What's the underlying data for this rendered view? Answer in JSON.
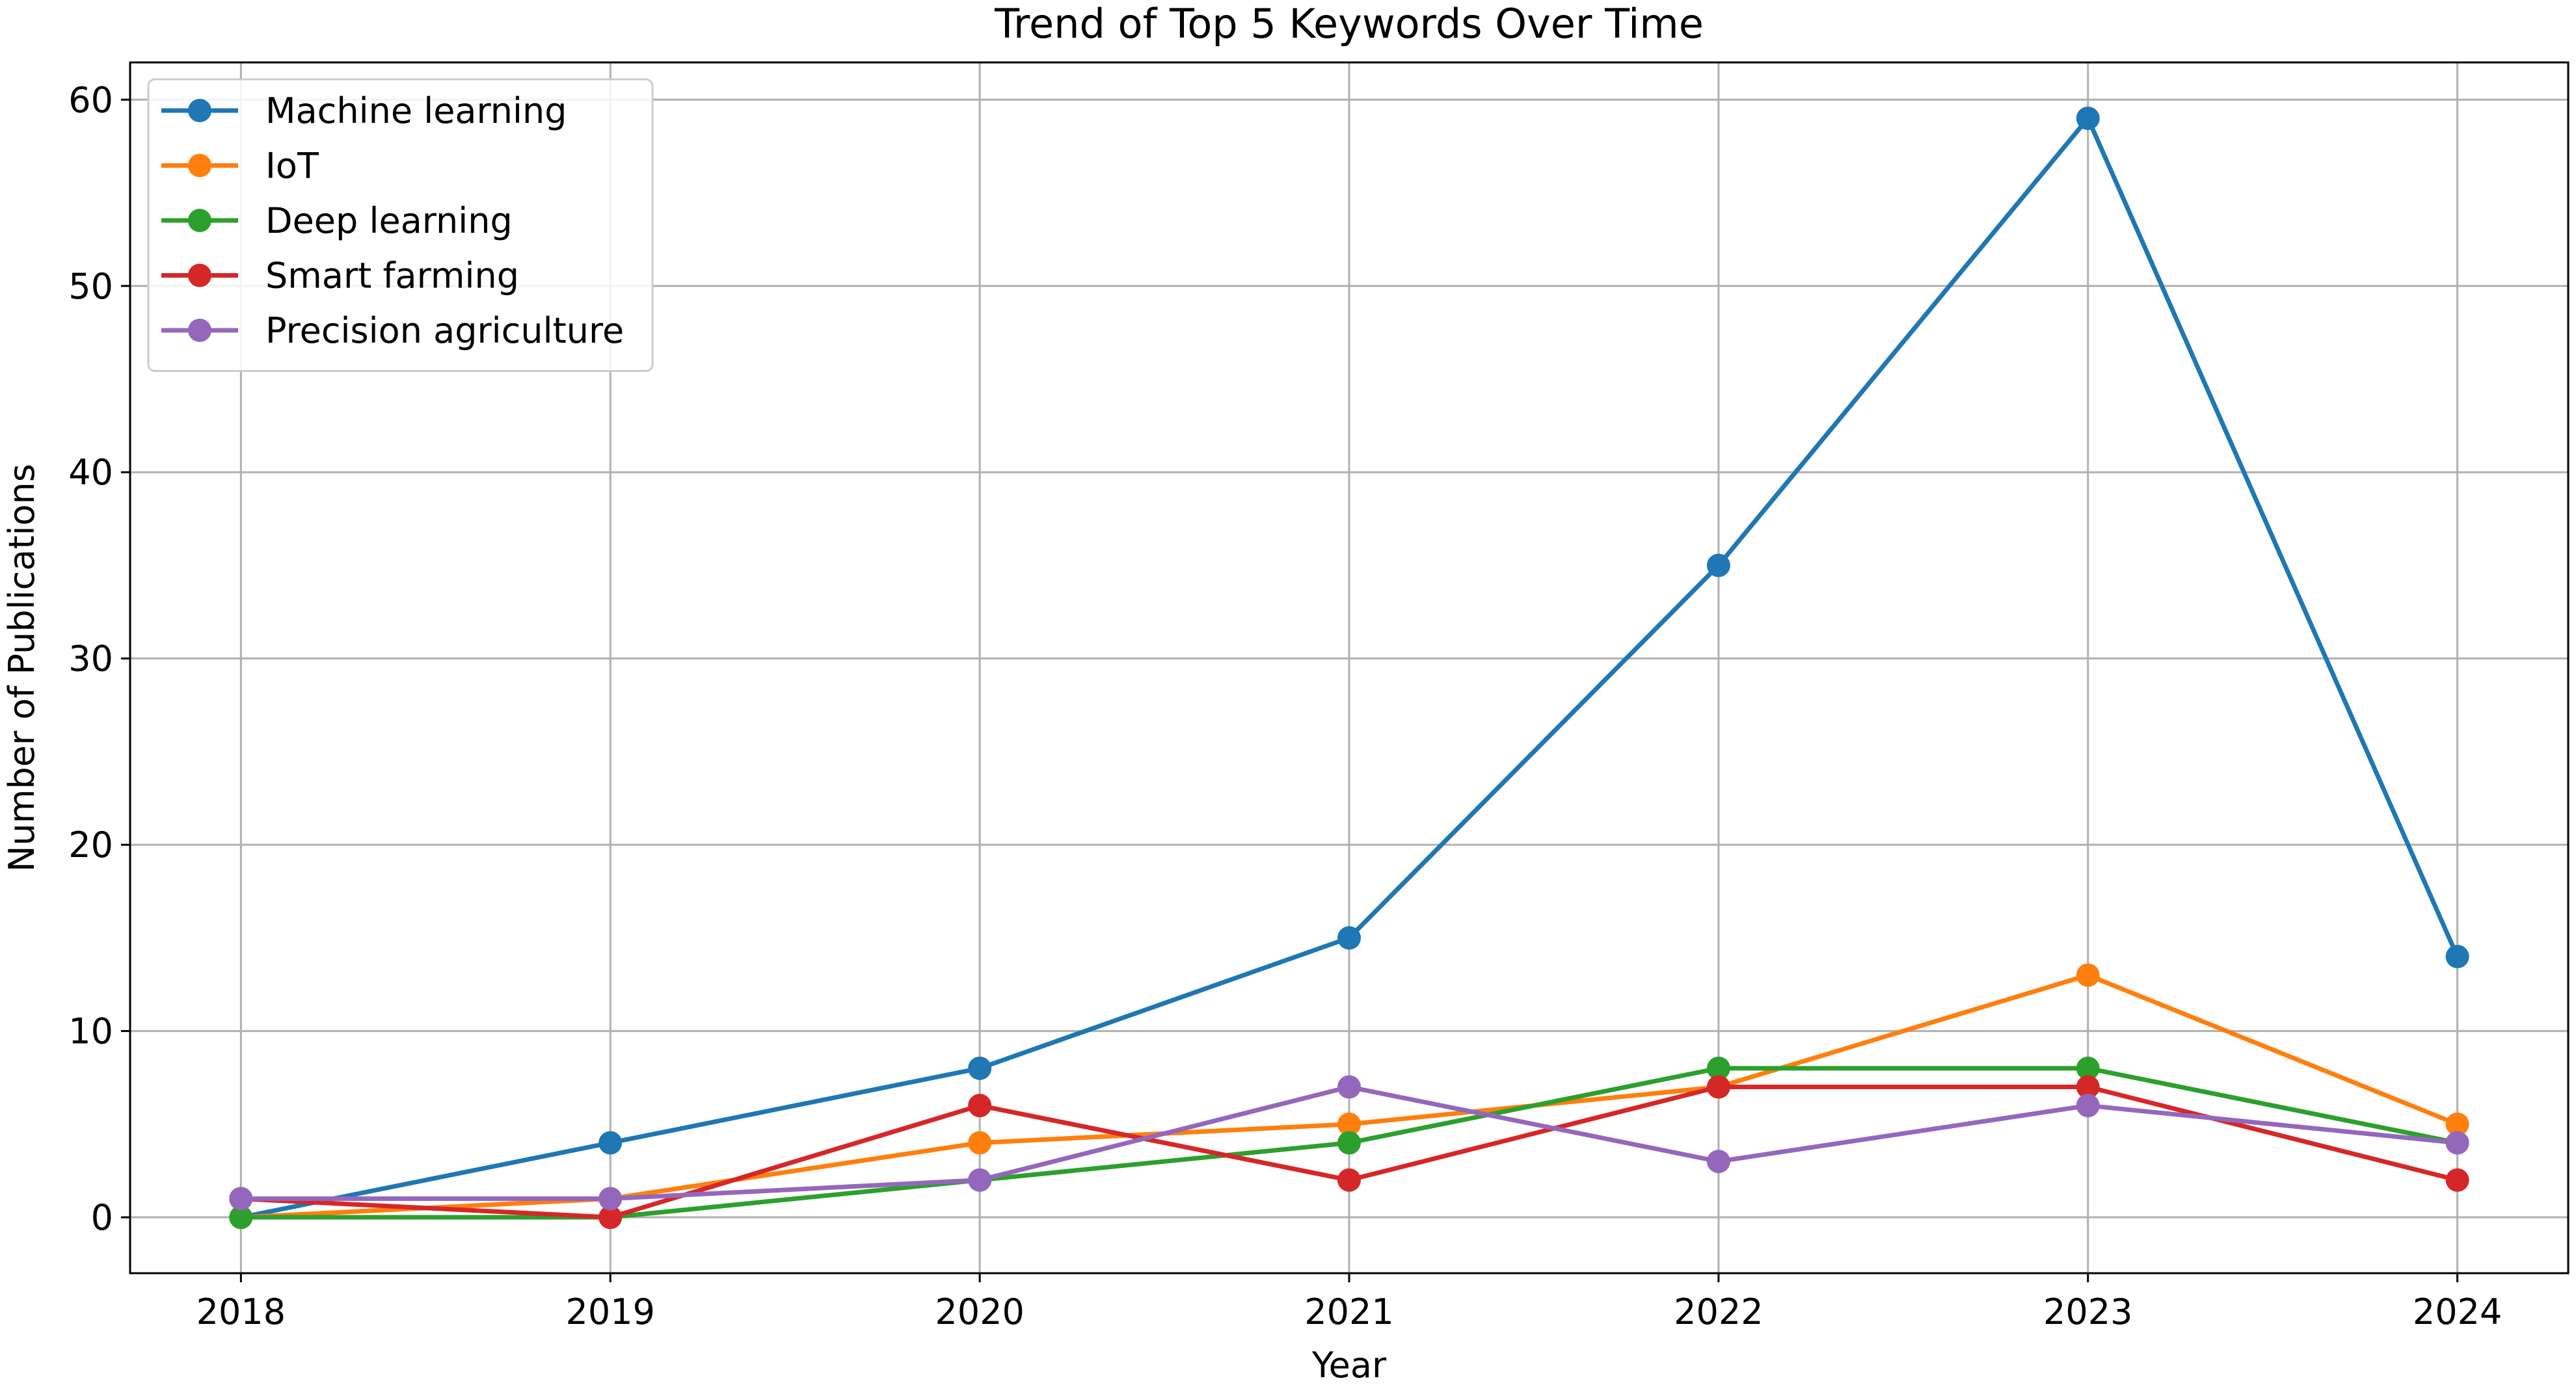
{
  "chart_data": {
    "type": "line",
    "title": "Trend of Top 5 Keywords Over Time",
    "xlabel": "Year",
    "ylabel": "Number of Publications",
    "x": [
      2018,
      2019,
      2020,
      2021,
      2022,
      2023,
      2024
    ],
    "xticks": [
      "2018",
      "2019",
      "2020",
      "2021",
      "2022",
      "2023",
      "2024"
    ],
    "yticks": [
      "0",
      "10",
      "20",
      "30",
      "40",
      "50",
      "60"
    ],
    "ylim": [
      -3,
      62
    ],
    "xlim": [
      2017.7,
      2024.3
    ],
    "grid": true,
    "legend_position": "top-left",
    "series": [
      {
        "name": "Machine learning",
        "color": "#1f77b4",
        "values": [
          0,
          4,
          8,
          15,
          35,
          59,
          14
        ]
      },
      {
        "name": "IoT",
        "color": "#ff7f0e",
        "values": [
          0,
          1,
          4,
          5,
          7,
          13,
          5
        ]
      },
      {
        "name": "Deep learning",
        "color": "#2ca02c",
        "values": [
          0,
          0,
          2,
          4,
          8,
          8,
          4
        ]
      },
      {
        "name": "Smart farming",
        "color": "#d62728",
        "values": [
          1,
          0,
          6,
          2,
          7,
          7,
          2
        ]
      },
      {
        "name": "Precision agriculture",
        "color": "#9467bd",
        "values": [
          1,
          1,
          2,
          7,
          3,
          6,
          4
        ]
      }
    ]
  }
}
